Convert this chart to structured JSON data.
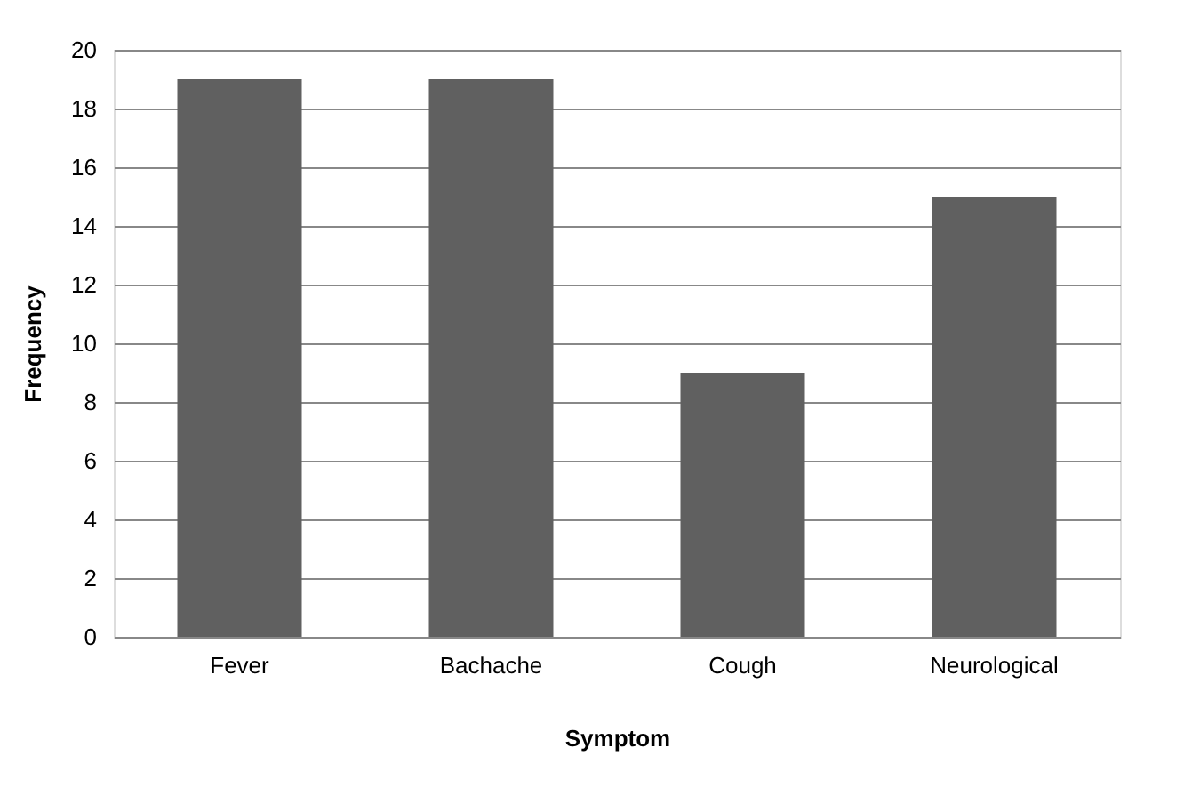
{
  "chart_data": {
    "type": "bar",
    "xlabel": "Symptom",
    "ylabel": "Frequency",
    "categories": [
      "Fever",
      "Bachache",
      "Cough",
      "Neurological"
    ],
    "values": [
      19,
      19,
      9,
      15
    ],
    "color": "#606060",
    "ylim": [
      0,
      20
    ],
    "yticks": [
      0,
      2,
      4,
      6,
      8,
      10,
      12,
      14,
      16,
      18,
      20
    ],
    "grid": "y"
  }
}
